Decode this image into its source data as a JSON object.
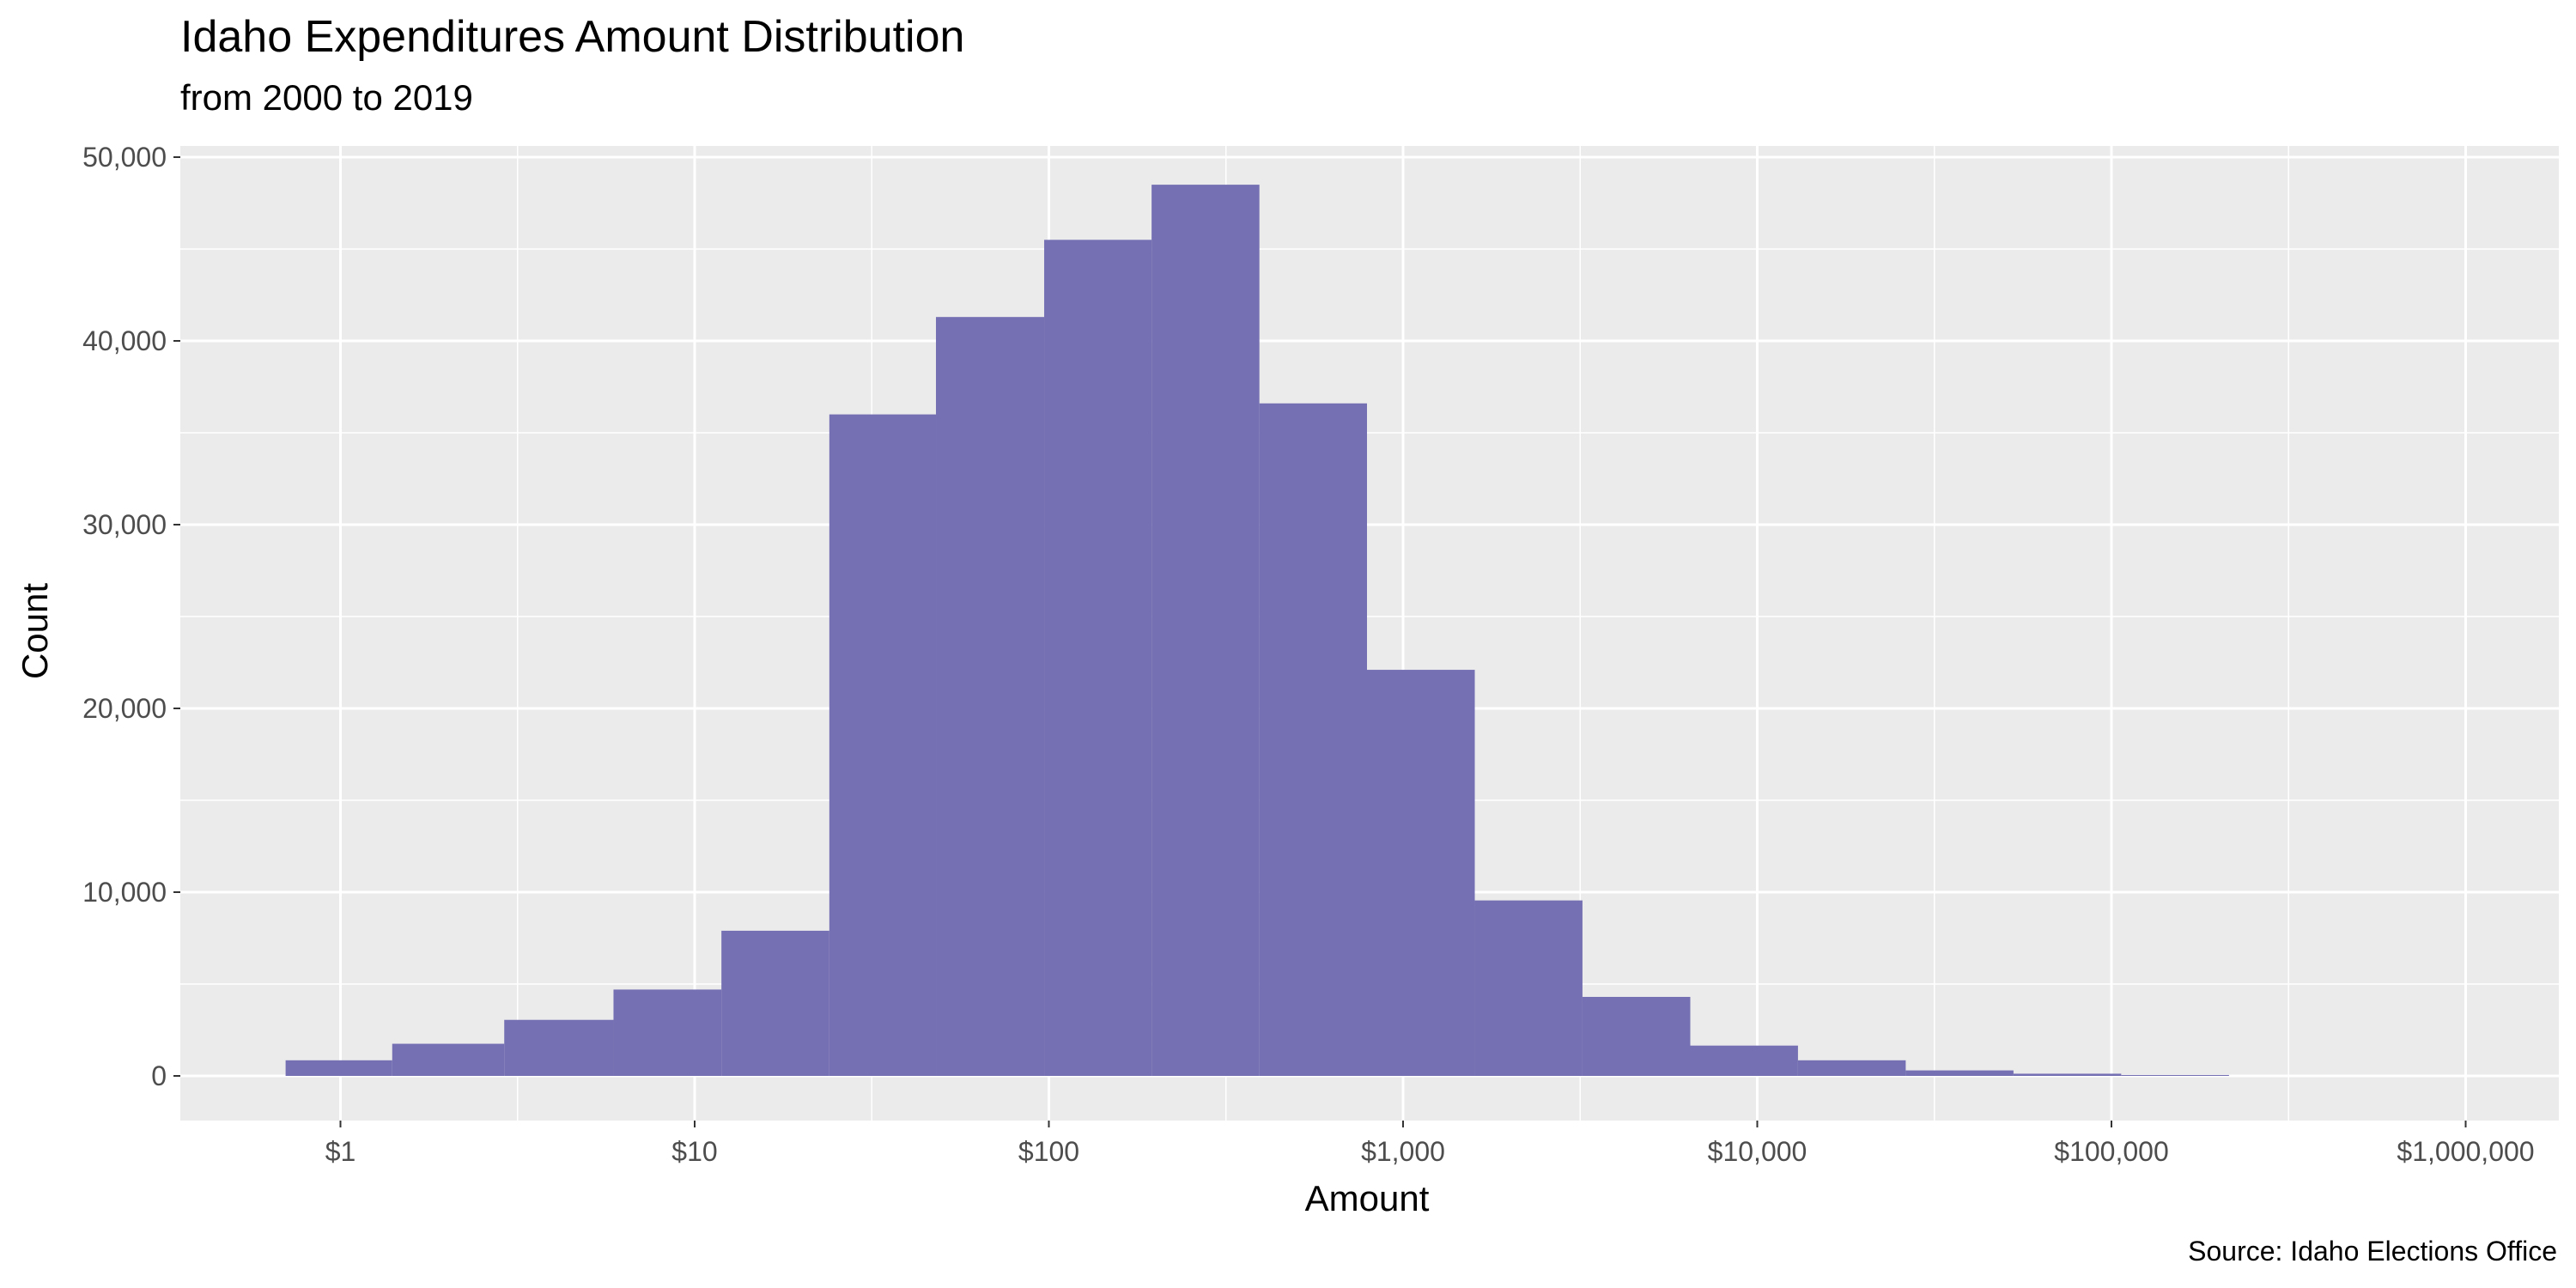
{
  "chart_data": {
    "type": "bar",
    "title": "Idaho Expenditures Amount Distribution",
    "subtitle": "from 2000 to 2019",
    "xlabel": "Amount",
    "ylabel": "Count",
    "caption": "Source: Idaho Elections Office",
    "x_scale": "log10",
    "xlim": [
      0.5,
      1500000
    ],
    "ylim": [
      0,
      50000
    ],
    "grid": true,
    "bar_color": "#7570B3",
    "panel_color": "#EBEBEB",
    "x_ticks": [
      {
        "value": 1,
        "label": "$1"
      },
      {
        "value": 10,
        "label": "$10"
      },
      {
        "value": 100,
        "label": "$100"
      },
      {
        "value": 1000,
        "label": "$1,000"
      },
      {
        "value": 10000,
        "label": "$10,000"
      },
      {
        "value": 100000,
        "label": "$100,000"
      },
      {
        "value": 1000000,
        "label": "$1,000,000"
      }
    ],
    "y_ticks": [
      {
        "value": 0,
        "label": "0"
      },
      {
        "value": 10000,
        "label": "10,000"
      },
      {
        "value": 20000,
        "label": "20,000"
      },
      {
        "value": 30000,
        "label": "30,000"
      },
      {
        "value": 40000,
        "label": "40,000"
      },
      {
        "value": 50000,
        "label": "50,000"
      }
    ],
    "bins": [
      {
        "from": 0.7,
        "to": 1.4,
        "count": 850
      },
      {
        "from": 1.4,
        "to": 2.9,
        "count": 1750
      },
      {
        "from": 2.9,
        "to": 5.9,
        "count": 3050
      },
      {
        "from": 5.9,
        "to": 11.9,
        "count": 4700
      },
      {
        "from": 11.9,
        "to": 24,
        "count": 7900
      },
      {
        "from": 24,
        "to": 48,
        "count": 36000
      },
      {
        "from": 48,
        "to": 97,
        "count": 41300
      },
      {
        "from": 97,
        "to": 195,
        "count": 45500
      },
      {
        "from": 195,
        "to": 393,
        "count": 48500
      },
      {
        "from": 393,
        "to": 791,
        "count": 36600
      },
      {
        "from": 791,
        "to": 1594,
        "count": 22100
      },
      {
        "from": 1594,
        "to": 3210,
        "count": 9550
      },
      {
        "from": 3210,
        "to": 6470,
        "count": 4300
      },
      {
        "from": 6470,
        "to": 13030,
        "count": 1650
      },
      {
        "from": 13030,
        "to": 26250,
        "count": 850
      },
      {
        "from": 26250,
        "to": 52890,
        "count": 300
      },
      {
        "from": 52890,
        "to": 106560,
        "count": 120
      },
      {
        "from": 106560,
        "to": 214700,
        "count": 50
      }
    ]
  }
}
